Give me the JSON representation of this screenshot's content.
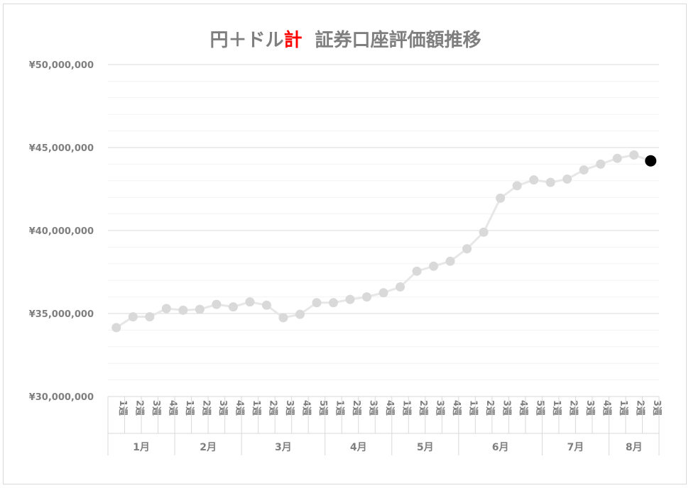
{
  "title": {
    "part1": "円＋ドル",
    "part2": "計",
    "part3": "証券口座評価額推移"
  },
  "colors": {
    "title": "#7f7f7f",
    "title_accent": "#ff0000",
    "line": "#e7e7e7",
    "marker": "#d9d9d9",
    "last_marker": "#000000",
    "gridline_major": "#d9d9d9",
    "gridline_minor": "#f2f2f2",
    "axis_text": "#7f7f7f"
  },
  "chart_data": {
    "type": "line",
    "title": "円＋ドル計 証券口座評価額推移",
    "ylim": [
      30000000,
      50000000
    ],
    "yticks": [
      30000000,
      35000000,
      40000000,
      45000000,
      50000000
    ],
    "ytick_labels": [
      "¥30,000,000",
      "¥35,000,000",
      "¥40,000,000",
      "¥45,000,000",
      "¥50,000,000"
    ],
    "minor_gridlines": true,
    "legend": "none",
    "months": [
      {
        "label": "1月",
        "weeks": [
          "1週",
          "2週",
          "3週",
          "4週"
        ]
      },
      {
        "label": "2月",
        "weeks": [
          "1週",
          "2週",
          "3週",
          "4週"
        ]
      },
      {
        "label": "3月",
        "weeks": [
          "1週",
          "2週",
          "3週",
          "4週",
          "5週"
        ]
      },
      {
        "label": "4月",
        "weeks": [
          "1週",
          "2週",
          "3週",
          "4週"
        ]
      },
      {
        "label": "5月",
        "weeks": [
          "1週",
          "2週",
          "3週",
          "4週"
        ]
      },
      {
        "label": "6月",
        "weeks": [
          "1週",
          "2週",
          "3週",
          "4週",
          "5週"
        ]
      },
      {
        "label": "7月",
        "weeks": [
          "1週",
          "2週",
          "3週",
          "4週"
        ]
      },
      {
        "label": "8月",
        "weeks": [
          "1週",
          "2週",
          "3週"
        ]
      }
    ],
    "values": [
      34150000,
      34800000,
      34800000,
      35300000,
      35200000,
      35250000,
      35550000,
      35400000,
      35700000,
      35500000,
      34750000,
      34950000,
      35650000,
      35650000,
      35850000,
      36000000,
      36250000,
      36600000,
      37550000,
      37850000,
      38150000,
      38900000,
      39900000,
      41950000,
      42700000,
      43050000,
      42900000,
      43100000,
      43650000,
      44000000,
      44350000,
      44550000,
      44200000
    ],
    "highlight_last": true
  }
}
